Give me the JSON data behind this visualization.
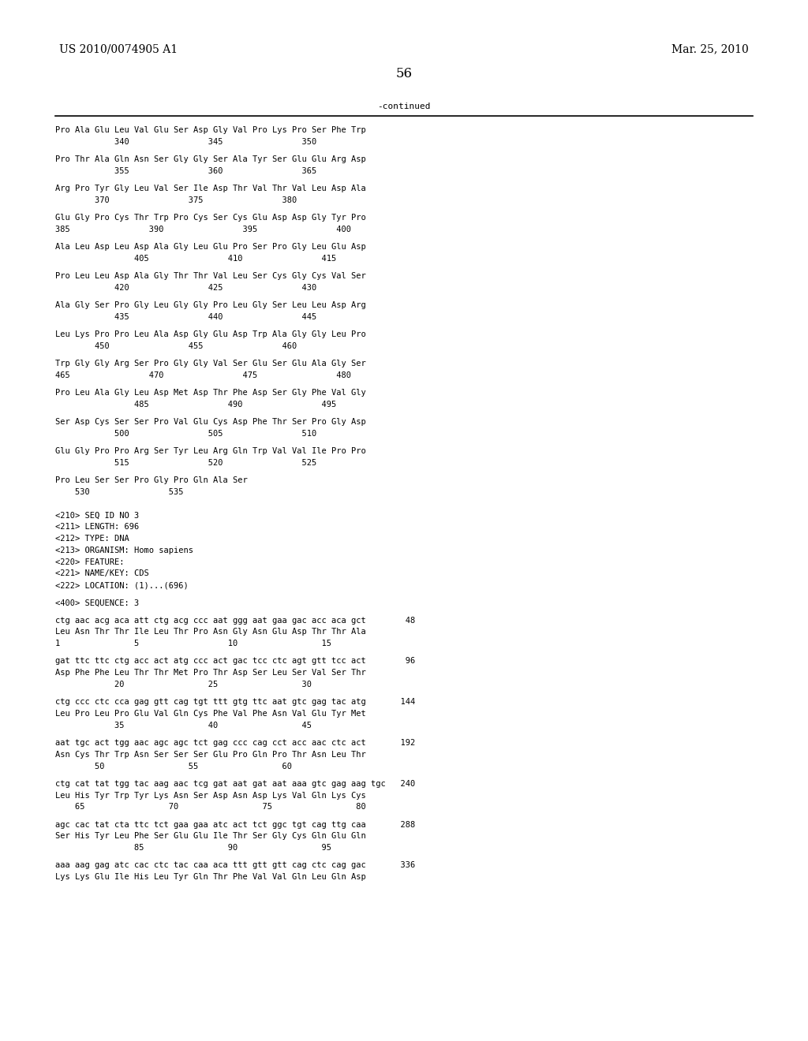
{
  "header_left": "US 2010/0074905 A1",
  "header_right": "Mar. 25, 2010",
  "page_number": "56",
  "continued_label": "-continued",
  "background_color": "#ffffff",
  "text_color": "#000000",
  "lines": [
    "Pro Ala Glu Leu Val Glu Ser Asp Gly Val Pro Lys Pro Ser Phe Trp",
    "            340                345                350",
    "",
    "Pro Thr Ala Gln Asn Ser Gly Gly Ser Ala Tyr Ser Glu Glu Arg Asp",
    "            355                360                365",
    "",
    "Arg Pro Tyr Gly Leu Val Ser Ile Asp Thr Val Thr Val Leu Asp Ala",
    "        370                375                380",
    "",
    "Glu Gly Pro Cys Thr Trp Pro Cys Ser Cys Glu Asp Asp Gly Tyr Pro",
    "385                390                395                400",
    "",
    "Ala Leu Asp Leu Asp Ala Gly Leu Glu Pro Ser Pro Gly Leu Glu Asp",
    "                405                410                415",
    "",
    "Pro Leu Leu Asp Ala Gly Thr Thr Val Leu Ser Cys Gly Cys Val Ser",
    "            420                425                430",
    "",
    "Ala Gly Ser Pro Gly Leu Gly Gly Pro Leu Gly Ser Leu Leu Asp Arg",
    "            435                440                445",
    "",
    "Leu Lys Pro Pro Leu Ala Asp Gly Glu Asp Trp Ala Gly Gly Leu Pro",
    "        450                455                460",
    "",
    "Trp Gly Gly Arg Ser Pro Gly Gly Val Ser Glu Ser Glu Ala Gly Ser",
    "465                470                475                480",
    "",
    "Pro Leu Ala Gly Leu Asp Met Asp Thr Phe Asp Ser Gly Phe Val Gly",
    "                485                490                495",
    "",
    "Ser Asp Cys Ser Ser Pro Val Glu Cys Asp Phe Thr Ser Pro Gly Asp",
    "            500                505                510",
    "",
    "Glu Gly Pro Pro Arg Ser Tyr Leu Arg Gln Trp Val Val Ile Pro Pro",
    "            515                520                525",
    "",
    "Pro Leu Ser Ser Pro Gly Pro Gln Ala Ser",
    "    530                535",
    "",
    "",
    "<210> SEQ ID NO 3",
    "<211> LENGTH: 696",
    "<212> TYPE: DNA",
    "<213> ORGANISM: Homo sapiens",
    "<220> FEATURE:",
    "<221> NAME/KEY: CDS",
    "<222> LOCATION: (1)...(696)",
    "",
    "<400> SEQUENCE: 3",
    "",
    "ctg aac acg aca att ctg acg ccc aat ggg aat gaa gac acc aca gct        48",
    "Leu Asn Thr Thr Ile Leu Thr Pro Asn Gly Asn Glu Asp Thr Thr Ala",
    "1               5                  10                 15",
    "",
    "gat ttc ttc ctg acc act atg ccc act gac tcc ctc agt gtt tcc act        96",
    "Asp Phe Phe Leu Thr Thr Met Pro Thr Asp Ser Leu Ser Val Ser Thr",
    "            20                 25                 30",
    "",
    "ctg ccc ctc cca gag gtt cag tgt ttt gtg ttc aat gtc gag tac atg       144",
    "Leu Pro Leu Pro Glu Val Gln Cys Phe Val Phe Asn Val Glu Tyr Met",
    "            35                 40                 45",
    "",
    "aat tgc act tgg aac agc agc tct gag ccc cag cct acc aac ctc act       192",
    "Asn Cys Thr Trp Asn Ser Ser Ser Glu Pro Gln Pro Thr Asn Leu Thr",
    "        50                 55                 60",
    "",
    "ctg cat tat tgg tac aag aac tcg gat aat gat aat aaa gtc gag aag tgc   240",
    "Leu His Tyr Trp Tyr Lys Asn Ser Asp Asn Asp Lys Val Gln Lys Cys",
    "    65                 70                 75                 80",
    "",
    "agc cac tat cta ttc tct gaa gaa atc act tct ggc tgt cag ttg caa       288",
    "Ser His Tyr Leu Phe Ser Glu Glu Ile Thr Ser Gly Cys Gln Glu Gln",
    "                85                 90                 95",
    "",
    "aaa aag gag atc cac ctc tac caa aca ttt gtt gtt cag ctc cag gac       336",
    "Lys Lys Glu Ile His Leu Tyr Gln Thr Phe Val Val Gln Leu Gln Asp"
  ]
}
